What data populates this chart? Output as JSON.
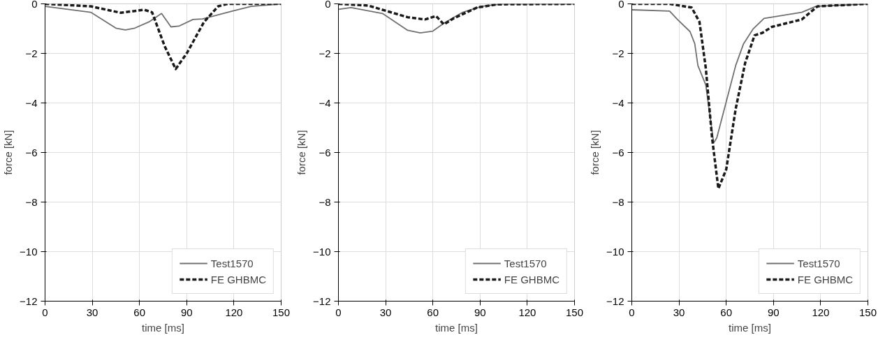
{
  "chart_data": [
    {
      "type": "line",
      "xlabel": "time [ms]",
      "ylabel": "force [kN]",
      "xlim": [
        0,
        150
      ],
      "ylim": [
        -12,
        0
      ],
      "xticks": [
        0,
        30,
        60,
        90,
        120,
        150
      ],
      "yticks": [
        -12,
        -10,
        -8,
        -6,
        -4,
        -2,
        0
      ],
      "grid": true,
      "legend": "bottom right",
      "series": [
        {
          "name": "Test1570",
          "color": "#707070",
          "line_style": "solid",
          "x": [
            0,
            29,
            45,
            51,
            57,
            66,
            74,
            80,
            85,
            94,
            100,
            119,
            131,
            150
          ],
          "values": [
            -0.1,
            -0.34,
            -0.98,
            -1.05,
            -0.98,
            -0.73,
            -0.39,
            -0.93,
            -0.9,
            -0.63,
            -0.61,
            -0.29,
            -0.1,
            0
          ]
        },
        {
          "name": "FE GHBMC",
          "color": "#1a1a1a",
          "line_style": "dashed",
          "x": [
            0,
            29,
            48,
            63,
            68,
            76,
            83,
            90,
            101,
            110,
            116,
            150
          ],
          "values": [
            0,
            -0.1,
            -0.36,
            -0.24,
            -0.34,
            -1.71,
            -2.63,
            -2.0,
            -0.73,
            -0.1,
            0,
            0
          ]
        }
      ]
    },
    {
      "type": "line",
      "xlabel": "time [ms]",
      "ylabel": "force [kN]",
      "xlim": [
        0,
        150
      ],
      "ylim": [
        -12,
        0
      ],
      "xticks": [
        0,
        30,
        60,
        90,
        120,
        150
      ],
      "yticks": [
        -12,
        -10,
        -8,
        -6,
        -4,
        -2,
        0
      ],
      "grid": true,
      "legend": "bottom right",
      "series": [
        {
          "name": "Test1570",
          "color": "#707070",
          "line_style": "solid",
          "x": [
            0,
            8,
            28,
            44,
            52,
            60,
            67,
            79,
            91,
            104,
            150
          ],
          "values": [
            -0.22,
            -0.15,
            -0.39,
            -1.07,
            -1.17,
            -1.1,
            -0.78,
            -0.34,
            -0.1,
            0,
            0
          ]
        },
        {
          "name": "FE GHBMC",
          "color": "#1a1a1a",
          "line_style": "dashed",
          "x": [
            0,
            19,
            44,
            55,
            62,
            67,
            73,
            88,
            101,
            150
          ],
          "values": [
            0,
            -0.07,
            -0.54,
            -0.63,
            -0.49,
            -0.83,
            -0.59,
            -0.15,
            -0.02,
            0
          ]
        }
      ]
    },
    {
      "type": "line",
      "xlabel": "time [ms]",
      "ylabel": "force [kN]",
      "xlim": [
        0,
        150
      ],
      "ylim": [
        -12,
        0
      ],
      "xticks": [
        0,
        30,
        60,
        90,
        120,
        150
      ],
      "yticks": [
        -12,
        -10,
        -8,
        -6,
        -4,
        -2,
        0
      ],
      "grid": true,
      "legend": "bottom right",
      "series": [
        {
          "name": "Test1570",
          "color": "#707070",
          "line_style": "solid",
          "x": [
            0,
            24,
            29,
            37,
            40,
            42,
            47,
            52,
            54,
            60,
            66,
            71,
            77,
            84,
            108,
            117,
            150
          ],
          "values": [
            -0.24,
            -0.29,
            -0.63,
            -1.12,
            -1.61,
            -2.49,
            -3.27,
            -5.61,
            -5.41,
            -3.95,
            -2.49,
            -1.61,
            -1.02,
            -0.59,
            -0.34,
            -0.1,
            0
          ]
        },
        {
          "name": "FE GHBMC",
          "color": "#1a1a1a",
          "line_style": "dashed",
          "x": [
            0,
            24,
            38,
            43,
            47,
            51,
            55,
            60,
            66,
            72,
            78,
            83,
            89,
            108,
            118,
            150
          ],
          "values": [
            0,
            0,
            -0.15,
            -0.73,
            -2.59,
            -5.41,
            -7.46,
            -6.68,
            -4.24,
            -2.39,
            -1.27,
            -1.17,
            -0.93,
            -0.63,
            -0.1,
            0
          ]
        }
      ]
    }
  ]
}
